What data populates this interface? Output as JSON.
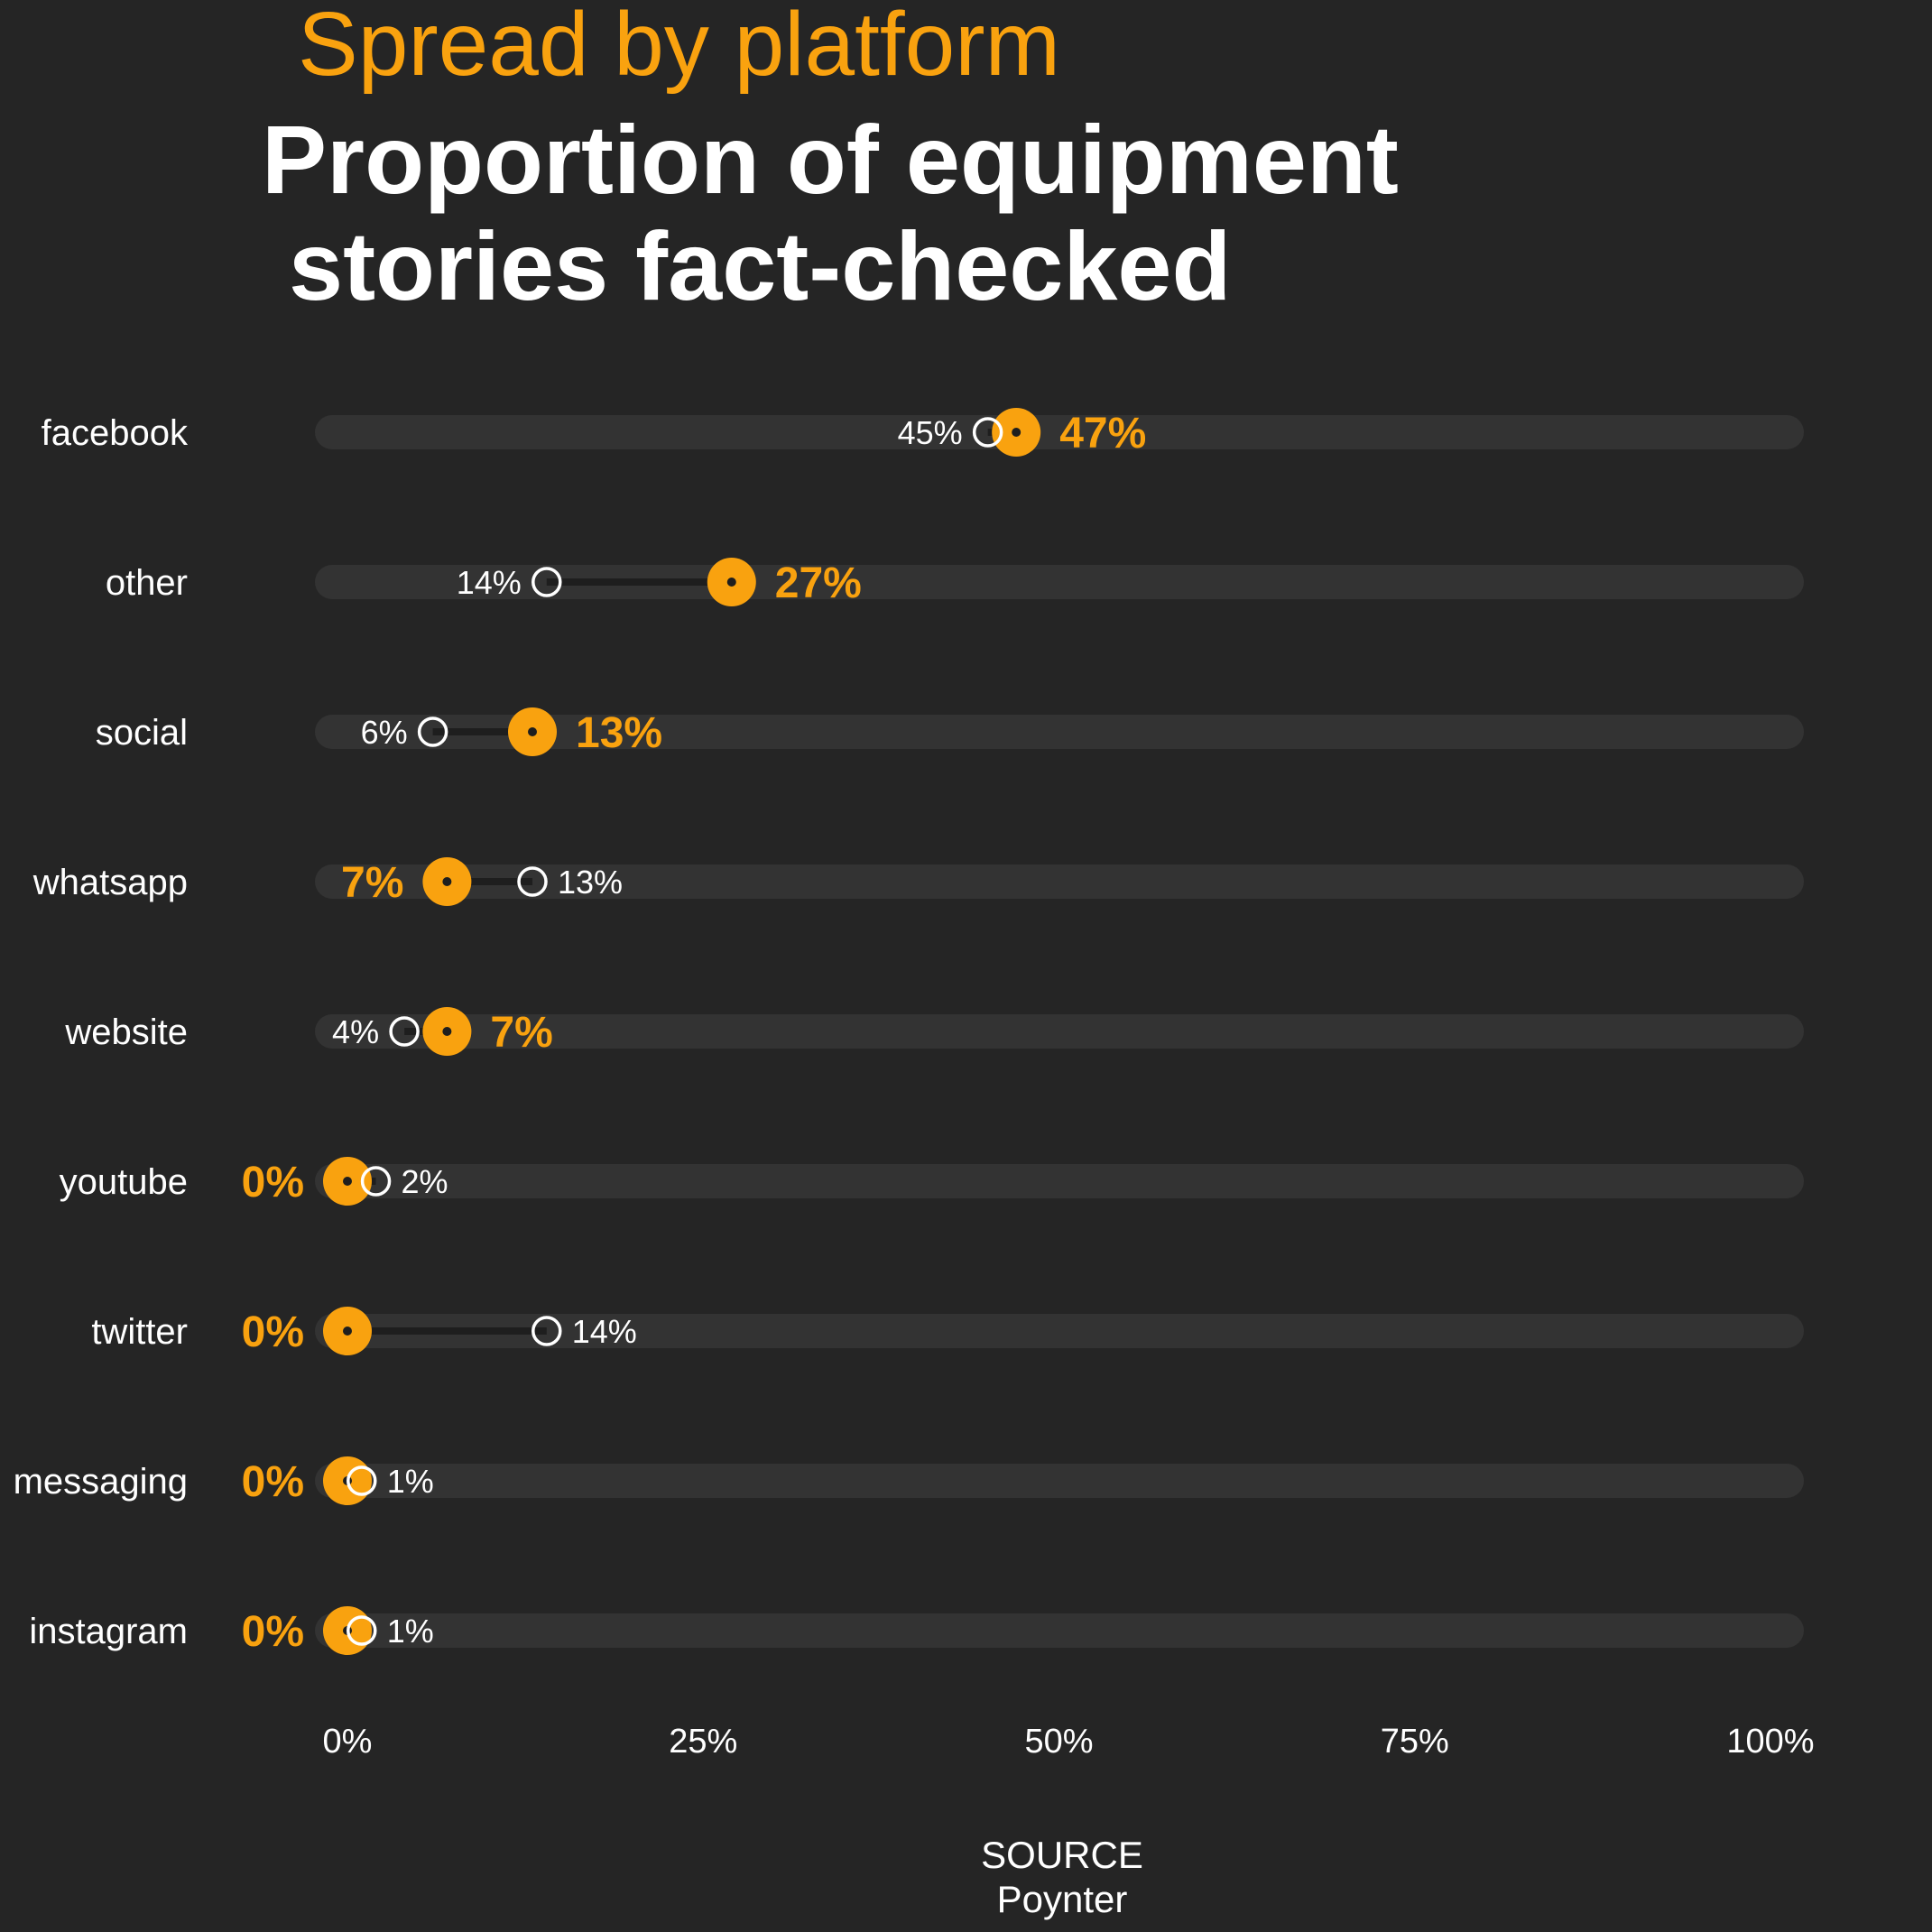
{
  "header": {
    "subtitle": "Spread by platform",
    "title": "Proportion of equipment\n stories fact-checked"
  },
  "source": {
    "heading": "SOURCE",
    "name": "Poynter"
  },
  "colors": {
    "background": "#252525",
    "track": "#333333",
    "highlight": "#f9a20f",
    "text": "#ffffff"
  },
  "chart_data": {
    "type": "dumbbell",
    "title": "Proportion of equipment stories fact-checked",
    "subtitle": "Spread by platform",
    "xlim": [
      0,
      100
    ],
    "x_ticks": [
      "0%",
      "25%",
      "50%",
      "75%",
      "100%"
    ],
    "categories": [
      "facebook",
      "other",
      "social",
      "whatsapp",
      "website",
      "youtube",
      "twitter",
      "messaging",
      "instagram"
    ],
    "series": [
      {
        "marker": "filled-circle",
        "color": "#f9a20f",
        "values": [
          47,
          27,
          13,
          7,
          7,
          0,
          0,
          0,
          0
        ]
      },
      {
        "marker": "hollow-circle",
        "color": "#ffffff",
        "values": [
          45,
          14,
          6,
          13,
          4,
          2,
          14,
          1,
          1
        ]
      }
    ],
    "grid": false,
    "legend": "none"
  }
}
